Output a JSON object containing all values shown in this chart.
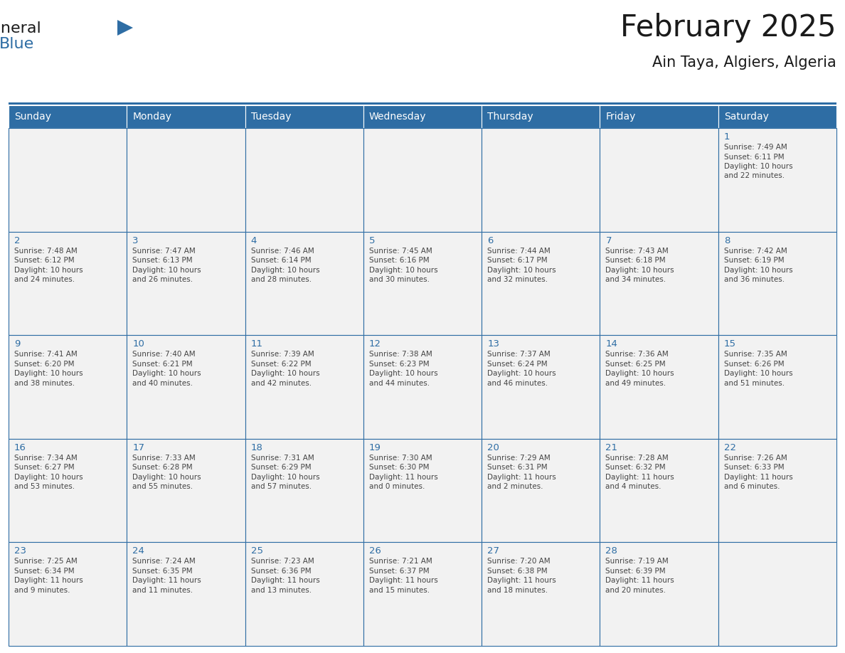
{
  "title": "February 2025",
  "subtitle": "Ain Taya, Algiers, Algeria",
  "header_bg_color": "#2E6DA4",
  "header_text_color": "#FFFFFF",
  "cell_bg_color": "#F2F2F2",
  "border_color": "#2E6DA4",
  "day_names": [
    "Sunday",
    "Monday",
    "Tuesday",
    "Wednesday",
    "Thursday",
    "Friday",
    "Saturday"
  ],
  "title_color": "#1a1a1a",
  "subtitle_color": "#1a1a1a",
  "cell_text_color": "#444444",
  "day_number_color": "#2E6DA4",
  "logo_general_color": "#1a1a1a",
  "logo_blue_color": "#2E6DA4",
  "calendar": [
    [
      null,
      null,
      null,
      null,
      null,
      null,
      {
        "day": 1,
        "sunrise": "7:49 AM",
        "sunset": "6:11 PM",
        "daylight_line1": "Daylight: 10 hours",
        "daylight_line2": "and 22 minutes."
      }
    ],
    [
      {
        "day": 2,
        "sunrise": "7:48 AM",
        "sunset": "6:12 PM",
        "daylight_line1": "Daylight: 10 hours",
        "daylight_line2": "and 24 minutes."
      },
      {
        "day": 3,
        "sunrise": "7:47 AM",
        "sunset": "6:13 PM",
        "daylight_line1": "Daylight: 10 hours",
        "daylight_line2": "and 26 minutes."
      },
      {
        "day": 4,
        "sunrise": "7:46 AM",
        "sunset": "6:14 PM",
        "daylight_line1": "Daylight: 10 hours",
        "daylight_line2": "and 28 minutes."
      },
      {
        "day": 5,
        "sunrise": "7:45 AM",
        "sunset": "6:16 PM",
        "daylight_line1": "Daylight: 10 hours",
        "daylight_line2": "and 30 minutes."
      },
      {
        "day": 6,
        "sunrise": "7:44 AM",
        "sunset": "6:17 PM",
        "daylight_line1": "Daylight: 10 hours",
        "daylight_line2": "and 32 minutes."
      },
      {
        "day": 7,
        "sunrise": "7:43 AM",
        "sunset": "6:18 PM",
        "daylight_line1": "Daylight: 10 hours",
        "daylight_line2": "and 34 minutes."
      },
      {
        "day": 8,
        "sunrise": "7:42 AM",
        "sunset": "6:19 PM",
        "daylight_line1": "Daylight: 10 hours",
        "daylight_line2": "and 36 minutes."
      }
    ],
    [
      {
        "day": 9,
        "sunrise": "7:41 AM",
        "sunset": "6:20 PM",
        "daylight_line1": "Daylight: 10 hours",
        "daylight_line2": "and 38 minutes."
      },
      {
        "day": 10,
        "sunrise": "7:40 AM",
        "sunset": "6:21 PM",
        "daylight_line1": "Daylight: 10 hours",
        "daylight_line2": "and 40 minutes."
      },
      {
        "day": 11,
        "sunrise": "7:39 AM",
        "sunset": "6:22 PM",
        "daylight_line1": "Daylight: 10 hours",
        "daylight_line2": "and 42 minutes."
      },
      {
        "day": 12,
        "sunrise": "7:38 AM",
        "sunset": "6:23 PM",
        "daylight_line1": "Daylight: 10 hours",
        "daylight_line2": "and 44 minutes."
      },
      {
        "day": 13,
        "sunrise": "7:37 AM",
        "sunset": "6:24 PM",
        "daylight_line1": "Daylight: 10 hours",
        "daylight_line2": "and 46 minutes."
      },
      {
        "day": 14,
        "sunrise": "7:36 AM",
        "sunset": "6:25 PM",
        "daylight_line1": "Daylight: 10 hours",
        "daylight_line2": "and 49 minutes."
      },
      {
        "day": 15,
        "sunrise": "7:35 AM",
        "sunset": "6:26 PM",
        "daylight_line1": "Daylight: 10 hours",
        "daylight_line2": "and 51 minutes."
      }
    ],
    [
      {
        "day": 16,
        "sunrise": "7:34 AM",
        "sunset": "6:27 PM",
        "daylight_line1": "Daylight: 10 hours",
        "daylight_line2": "and 53 minutes."
      },
      {
        "day": 17,
        "sunrise": "7:33 AM",
        "sunset": "6:28 PM",
        "daylight_line1": "Daylight: 10 hours",
        "daylight_line2": "and 55 minutes."
      },
      {
        "day": 18,
        "sunrise": "7:31 AM",
        "sunset": "6:29 PM",
        "daylight_line1": "Daylight: 10 hours",
        "daylight_line2": "and 57 minutes."
      },
      {
        "day": 19,
        "sunrise": "7:30 AM",
        "sunset": "6:30 PM",
        "daylight_line1": "Daylight: 11 hours",
        "daylight_line2": "and 0 minutes."
      },
      {
        "day": 20,
        "sunrise": "7:29 AM",
        "sunset": "6:31 PM",
        "daylight_line1": "Daylight: 11 hours",
        "daylight_line2": "and 2 minutes."
      },
      {
        "day": 21,
        "sunrise": "7:28 AM",
        "sunset": "6:32 PM",
        "daylight_line1": "Daylight: 11 hours",
        "daylight_line2": "and 4 minutes."
      },
      {
        "day": 22,
        "sunrise": "7:26 AM",
        "sunset": "6:33 PM",
        "daylight_line1": "Daylight: 11 hours",
        "daylight_line2": "and 6 minutes."
      }
    ],
    [
      {
        "day": 23,
        "sunrise": "7:25 AM",
        "sunset": "6:34 PM",
        "daylight_line1": "Daylight: 11 hours",
        "daylight_line2": "and 9 minutes."
      },
      {
        "day": 24,
        "sunrise": "7:24 AM",
        "sunset": "6:35 PM",
        "daylight_line1": "Daylight: 11 hours",
        "daylight_line2": "and 11 minutes."
      },
      {
        "day": 25,
        "sunrise": "7:23 AM",
        "sunset": "6:36 PM",
        "daylight_line1": "Daylight: 11 hours",
        "daylight_line2": "and 13 minutes."
      },
      {
        "day": 26,
        "sunrise": "7:21 AM",
        "sunset": "6:37 PM",
        "daylight_line1": "Daylight: 11 hours",
        "daylight_line2": "and 15 minutes."
      },
      {
        "day": 27,
        "sunrise": "7:20 AM",
        "sunset": "6:38 PM",
        "daylight_line1": "Daylight: 11 hours",
        "daylight_line2": "and 18 minutes."
      },
      {
        "day": 28,
        "sunrise": "7:19 AM",
        "sunset": "6:39 PM",
        "daylight_line1": "Daylight: 11 hours",
        "daylight_line2": "and 20 minutes."
      },
      null
    ]
  ]
}
